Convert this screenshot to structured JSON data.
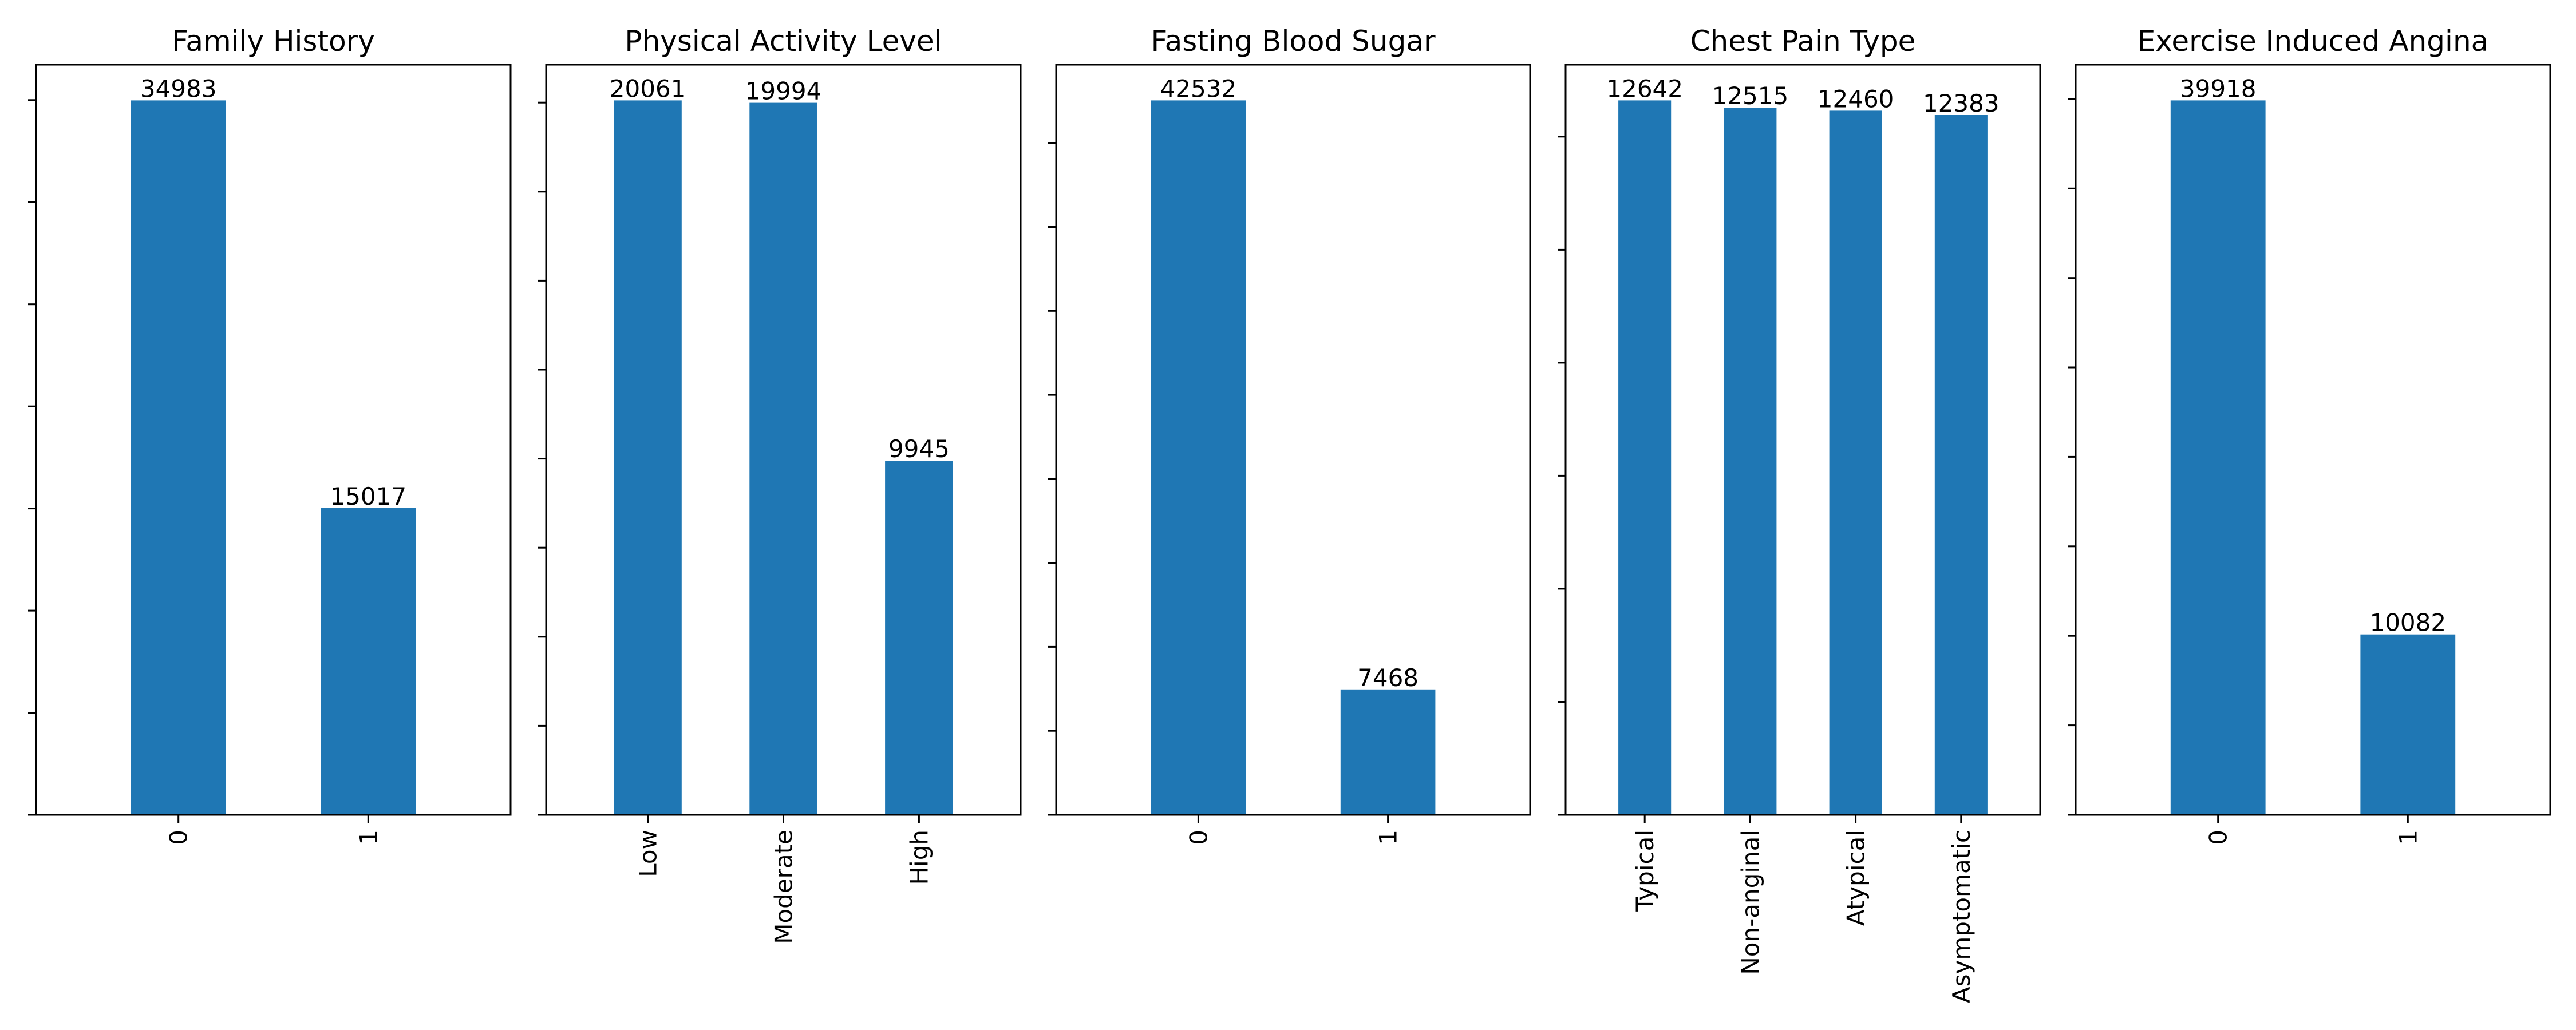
{
  "colors": {
    "bar": "#1f77b4",
    "axis": "#000000",
    "background": "#ffffff"
  },
  "chart_data": [
    {
      "type": "bar",
      "title": "Family History",
      "categories": [
        "0",
        "1"
      ],
      "values": [
        34983,
        15017
      ],
      "ylim": [
        0,
        36732
      ],
      "yticks": [
        0,
        5000,
        10000,
        15000,
        20000,
        25000,
        30000,
        35000
      ],
      "ytick_labels_visible": false,
      "grid": false,
      "xlabel": "",
      "ylabel": ""
    },
    {
      "type": "bar",
      "title": "Physical Activity Level",
      "categories": [
        "Low",
        "Moderate",
        "High"
      ],
      "values": [
        20061,
        19994,
        9945
      ],
      "ylim": [
        0,
        21064
      ],
      "yticks": [
        0,
        2500,
        5000,
        7500,
        10000,
        12500,
        15000,
        17500,
        20000
      ],
      "ytick_labels_visible": false,
      "grid": false,
      "xlabel": "",
      "ylabel": ""
    },
    {
      "type": "bar",
      "title": "Fasting Blood Sugar",
      "categories": [
        "0",
        "1"
      ],
      "values": [
        42532,
        7468
      ],
      "ylim": [
        0,
        44659
      ],
      "yticks": [
        0,
        5000,
        10000,
        15000,
        20000,
        25000,
        30000,
        35000,
        40000
      ],
      "ytick_labels_visible": false,
      "grid": false,
      "xlabel": "",
      "ylabel": ""
    },
    {
      "type": "bar",
      "title": "Chest Pain Type",
      "categories": [
        "Typical",
        "Non-anginal",
        "Atypical",
        "Asymptomatic"
      ],
      "values": [
        12642,
        12515,
        12460,
        12383
      ],
      "ylim": [
        0,
        13274
      ],
      "yticks": [
        0,
        2000,
        4000,
        6000,
        8000,
        10000,
        12000
      ],
      "ytick_labels_visible": false,
      "grid": false,
      "xlabel": "",
      "ylabel": ""
    },
    {
      "type": "bar",
      "title": "Exercise Induced Angina",
      "categories": [
        "0",
        "1"
      ],
      "values": [
        39918,
        10082
      ],
      "ylim": [
        0,
        41914
      ],
      "yticks": [
        0,
        5000,
        10000,
        15000,
        20000,
        25000,
        30000,
        35000,
        40000
      ],
      "ytick_labels_visible": false,
      "grid": false,
      "xlabel": "",
      "ylabel": ""
    }
  ]
}
